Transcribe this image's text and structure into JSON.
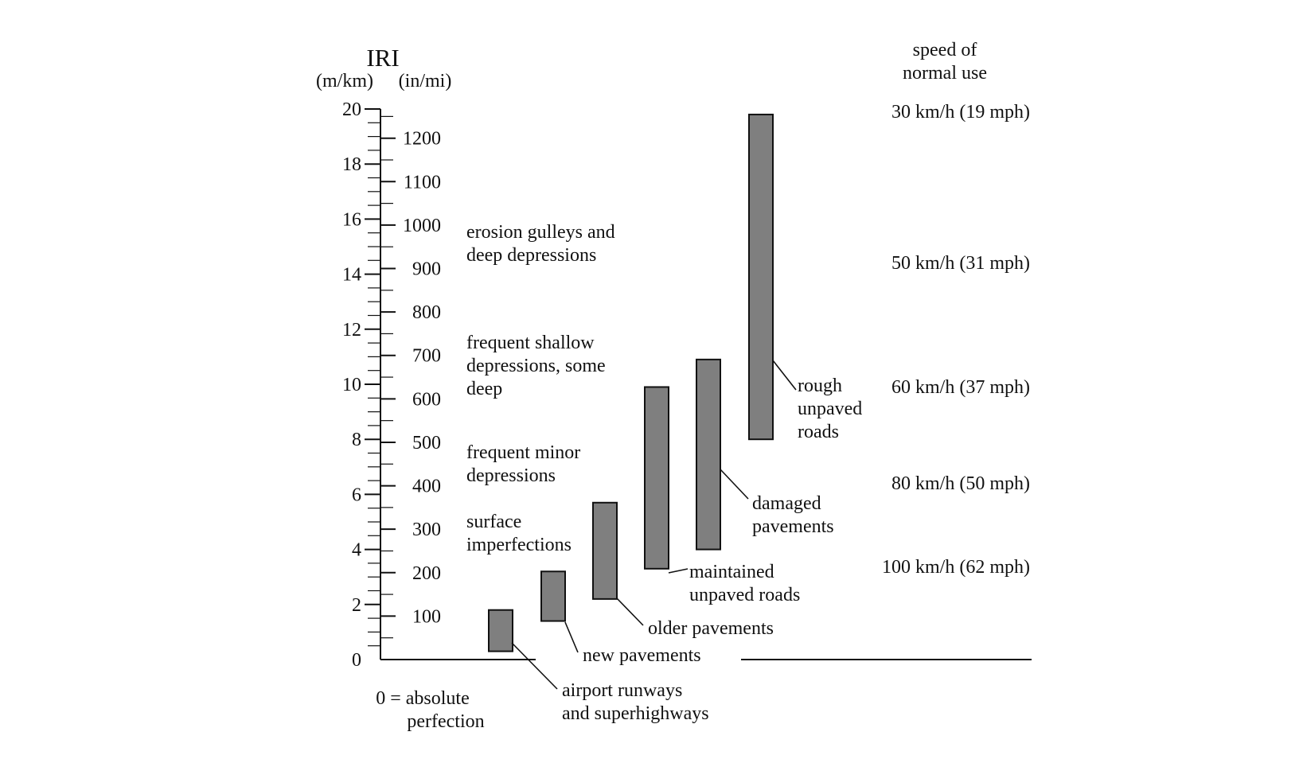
{
  "chart_data": {
    "type": "bar",
    "title": "IRI",
    "units": {
      "left": "(m/km)",
      "right": "(in/mi)"
    },
    "scale_m_per_km": {
      "range": [
        0,
        20
      ],
      "tick_labels": [
        "0",
        "2",
        "4",
        "6",
        "8",
        "10",
        "12",
        "14",
        "16",
        "18",
        "20"
      ],
      "minor_step": 0.5
    },
    "scale_in_per_mi": {
      "tick_labels": [
        "100",
        "200",
        "300",
        "400",
        "500",
        "600",
        "700",
        "800",
        "900",
        "1000",
        "1100",
        "1200"
      ],
      "minor_step": 50
    },
    "bars": [
      {
        "label": "airport runways and superhighways",
        "label_lines": [
          "airport runways",
          "and superhighways"
        ],
        "range_m_per_km": [
          0.3,
          1.8
        ]
      },
      {
        "label": "new pavements",
        "label_lines": [
          "new pavements"
        ],
        "range_m_per_km": [
          1.4,
          3.2
        ]
      },
      {
        "label": "older pavements",
        "label_lines": [
          "older pavements"
        ],
        "range_m_per_km": [
          2.2,
          5.7
        ]
      },
      {
        "label": "maintained unpaved roads",
        "label_lines": [
          "maintained",
          "unpaved roads"
        ],
        "range_m_per_km": [
          3.3,
          9.9
        ]
      },
      {
        "label": "damaged pavements",
        "label_lines": [
          "damaged",
          "pavements"
        ],
        "range_m_per_km": [
          4.0,
          10.9
        ]
      },
      {
        "label": "rough unpaved roads",
        "label_lines": [
          "rough",
          "unpaved",
          "roads"
        ],
        "range_m_per_km": [
          8.0,
          19.8
        ]
      }
    ],
    "descriptions": [
      {
        "lines": [
          "erosion gulleys and",
          "deep depressions"
        ]
      },
      {
        "lines": [
          "frequent shallow",
          "depressions, some",
          "deep"
        ]
      },
      {
        "lines": [
          "frequent minor",
          "depressions"
        ]
      },
      {
        "lines": [
          "surface",
          "imperfections"
        ]
      }
    ],
    "speed_title_lines": [
      "speed of",
      "normal use"
    ],
    "speeds": [
      {
        "label": "30 km/h (19 mph)",
        "at_m_per_km": 20
      },
      {
        "label": "50 km/h (31 mph)",
        "at_m_per_km": 14.5
      },
      {
        "label": "60 km/h (37 mph)",
        "at_m_per_km": 10
      },
      {
        "label": "80 km/h (50 mph)",
        "at_m_per_km": 6.5
      },
      {
        "label": "100 km/h (62 mph)",
        "at_m_per_km": 3.5
      }
    ],
    "zero_note_lines": [
      "0 = absolute",
      "perfection"
    ],
    "grid": false
  }
}
